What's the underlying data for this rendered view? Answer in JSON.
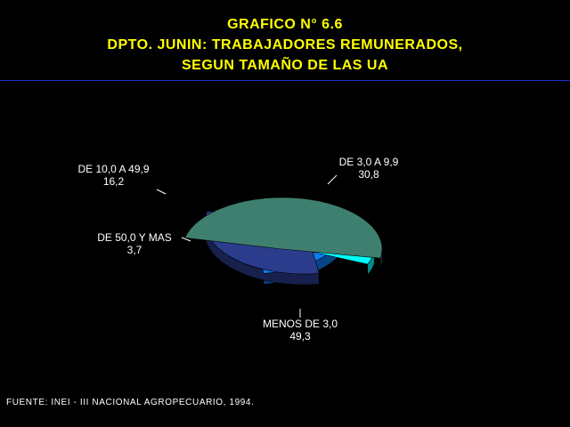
{
  "title": {
    "line1": "GRAFICO N° 6.6",
    "line2": "DPTO. JUNIN: TRABAJADORES REMUNERADOS,",
    "line3": "SEGUN TAMAÑO DE LAS UA"
  },
  "source": "FUENTE: INEI - III NACIONAL AGROPECUARIO, 1994.",
  "colors": {
    "background": "#000000",
    "title": "#ffff00",
    "rule": "#1f2fd0"
  },
  "chart_data": {
    "type": "pie",
    "style": "3d-exploded",
    "slices": [
      {
        "label": "MENOS DE 3,0",
        "value": 49.3,
        "value_label": "49,3",
        "color": "#3f7f6f"
      },
      {
        "label": "DE 50,0 Y MAS",
        "value": 3.7,
        "value_label": "3,7",
        "color": "#00ffff"
      },
      {
        "label": "DE 10,0 A 49,9",
        "value": 16.2,
        "value_label": "16,2",
        "color": "#0a7ff5"
      },
      {
        "label": "DE 3,0 A 9,9",
        "value": 30.8,
        "value_label": "30,8",
        "color": "#2b3c8c"
      }
    ]
  }
}
